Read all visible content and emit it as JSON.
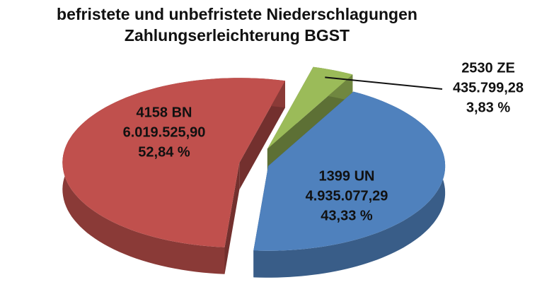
{
  "chart_data": {
    "type": "pie",
    "title": [
      "befristete und unbefristete Niederschlagungen",
      "Zahlungserleichterung BGST"
    ],
    "categories": [
      "2530 ZE",
      "1399 UN",
      "4158 BN"
    ],
    "values": [
      3.83,
      43.33,
      52.84
    ],
    "value_labels": [
      "3,83 %",
      "43,33 %",
      "52,84 %"
    ],
    "amounts": [
      435799.28,
      4935077.29,
      6019525.9
    ],
    "amount_labels": [
      "435.799,28",
      "4.935.077,29",
      "6.019.525,90"
    ],
    "colors": [
      "#9bbb59",
      "#4f81bd",
      "#c0504d"
    ]
  }
}
